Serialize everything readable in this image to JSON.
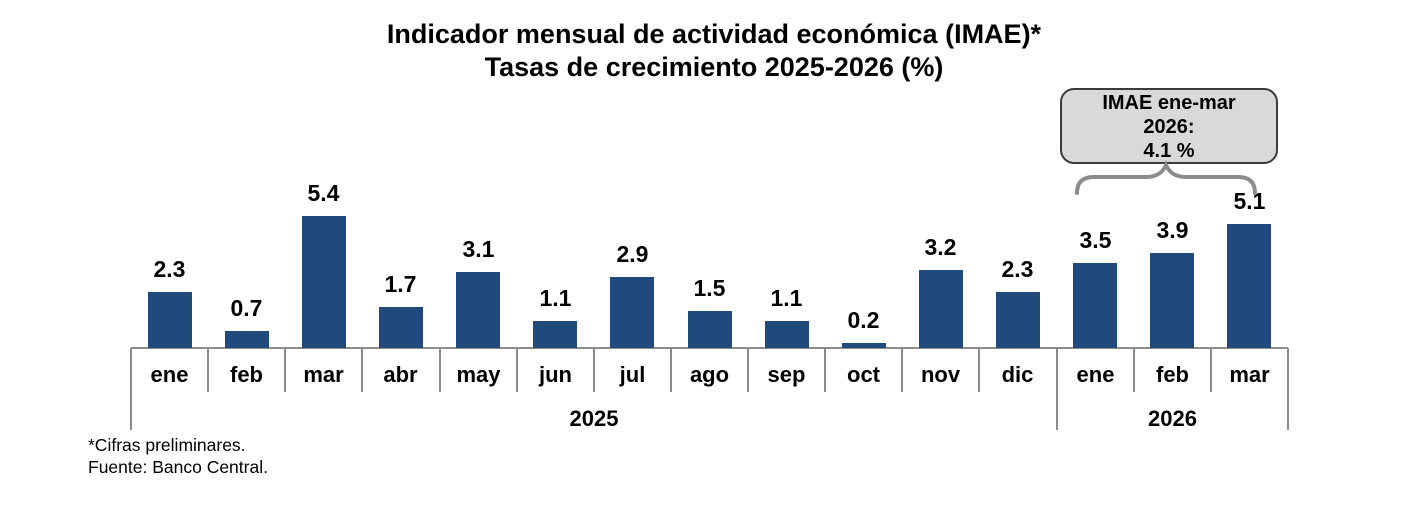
{
  "chart_data": {
    "type": "bar",
    "title": "Indicador mensual de actividad económica (IMAE)*",
    "subtitle": "Tasas de crecimiento 2025-2026 (%)",
    "categories": [
      "ene",
      "feb",
      "mar",
      "abr",
      "may",
      "jun",
      "jul",
      "ago",
      "sep",
      "oct",
      "nov",
      "dic",
      "ene",
      "feb",
      "mar"
    ],
    "values": [
      2.3,
      0.7,
      5.4,
      1.7,
      3.1,
      1.1,
      2.9,
      1.5,
      1.1,
      0.2,
      3.2,
      2.3,
      3.5,
      3.9,
      5.1
    ],
    "year_groups": [
      {
        "label": "2025",
        "start": 0,
        "count": 12
      },
      {
        "label": "2026",
        "start": 12,
        "count": 3
      }
    ],
    "ylim": [
      0,
      6
    ],
    "grid": false,
    "legend": false,
    "value_labels": true,
    "bar_color": "#1F4A7B",
    "axis_color": "#8C8C8C",
    "label_color": "#000000"
  },
  "annotation": {
    "lines": [
      "IMAE ene-mar",
      "2026:",
      "4.1 %"
    ],
    "fill": "#D9D9D9",
    "border": "#3A3A3A",
    "brace_color": "#8C8C8C"
  },
  "footnotes": [
    "*Cifras preliminares.",
    "Fuente: Banco Central."
  ]
}
